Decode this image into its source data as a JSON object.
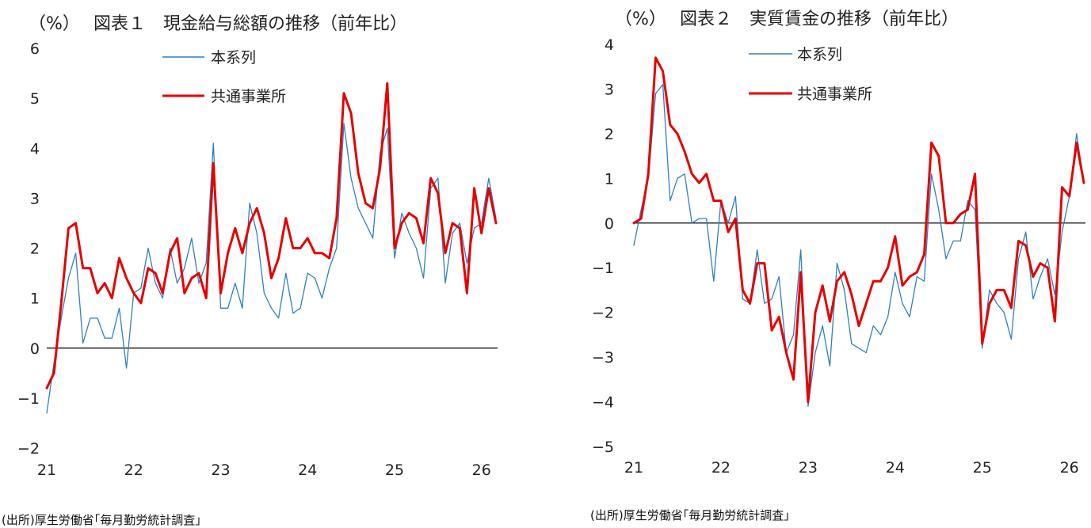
{
  "chart_data": [
    {
      "type": "line",
      "unit_label": "（%）",
      "title": "図表１　現金給与総額の推移（前年比）",
      "xlabel": "",
      "ylabel": "",
      "ylim": [
        -2,
        6
      ],
      "y_ticks": [
        -2,
        -1,
        0,
        1,
        2,
        3,
        4,
        5,
        6
      ],
      "y_tick_labels": [
        "−2",
        "−1",
        "0",
        "1",
        "2",
        "3",
        "4",
        "5",
        "6"
      ],
      "x_ticks": [
        "21",
        "22",
        "23",
        "24",
        "25",
        "26"
      ],
      "x_range_months": [
        1,
        63
      ],
      "legend_position": "top-center",
      "series": [
        {
          "name": "本系列",
          "color": "#2f7fc1",
          "values": [
            -1.3,
            -0.3,
            0.6,
            1.4,
            1.9,
            0.1,
            0.6,
            0.6,
            0.2,
            0.2,
            0.8,
            -0.4,
            1.1,
            1.2,
            2.0,
            1.3,
            1.0,
            2.0,
            1.3,
            1.6,
            2.2,
            1.3,
            1.7,
            4.1,
            0.8,
            0.8,
            1.3,
            0.8,
            2.9,
            2.3,
            1.1,
            0.8,
            0.6,
            1.5,
            0.7,
            0.8,
            1.5,
            1.4,
            1.0,
            1.6,
            2.0,
            4.5,
            3.4,
            2.8,
            2.5,
            2.2,
            3.9,
            4.4,
            1.8,
            2.7,
            2.3,
            2.0,
            1.4,
            3.2,
            3.4,
            1.3,
            2.3,
            2.5,
            1.7,
            2.4,
            2.5,
            3.4,
            2.6
          ]
        },
        {
          "name": "共通事業所",
          "color": "#e60000",
          "values": [
            -0.8,
            -0.5,
            0.9,
            2.4,
            2.5,
            1.6,
            1.6,
            1.1,
            1.3,
            1.0,
            1.8,
            1.4,
            1.1,
            0.9,
            1.6,
            1.5,
            1.1,
            1.9,
            2.2,
            1.1,
            1.4,
            1.5,
            1.0,
            3.7,
            1.1,
            1.9,
            2.4,
            1.9,
            2.5,
            2.8,
            2.3,
            1.4,
            1.8,
            2.6,
            2.0,
            2.0,
            2.2,
            1.9,
            1.9,
            1.8,
            2.6,
            5.1,
            4.7,
            3.5,
            2.9,
            2.8,
            3.6,
            5.3,
            2.0,
            2.5,
            2.7,
            2.6,
            2.1,
            3.4,
            3.1,
            1.9,
            2.5,
            2.4,
            1.1,
            3.2,
            2.3,
            3.2,
            2.5
          ]
        }
      ],
      "source": "(出所)厚生労働省｢毎月勤労統計調査｣"
    },
    {
      "type": "line",
      "unit_label": "（%）",
      "title": "図表２　実質賃金の推移（前年比）",
      "xlabel": "",
      "ylabel": "",
      "ylim": [
        -5,
        4
      ],
      "y_ticks": [
        -5,
        -4,
        -3,
        -2,
        -1,
        0,
        1,
        2,
        3,
        4
      ],
      "y_tick_labels": [
        "−5",
        "−4",
        "−3",
        "−2",
        "−1",
        "0",
        "1",
        "2",
        "3",
        "4"
      ],
      "x_ticks": [
        "21",
        "22",
        "23",
        "24",
        "25",
        "26"
      ],
      "x_range_months": [
        1,
        63
      ],
      "legend_position": "top-center",
      "series": [
        {
          "name": "本系列",
          "color": "#2f7fc1",
          "values": [
            -0.5,
            0.3,
            1.0,
            2.9,
            3.1,
            0.5,
            1.0,
            1.1,
            0.0,
            0.1,
            0.1,
            -1.3,
            0.5,
            0.0,
            0.6,
            -1.7,
            -1.8,
            -0.6,
            -1.8,
            -1.7,
            -1.2,
            -2.9,
            -2.5,
            -0.6,
            -4.1,
            -2.9,
            -2.3,
            -3.2,
            -0.9,
            -1.5,
            -2.7,
            -2.8,
            -2.9,
            -2.3,
            -2.5,
            -2.1,
            -1.1,
            -1.8,
            -2.1,
            -1.2,
            -1.3,
            1.1,
            0.3,
            -0.8,
            -0.4,
            -0.4,
            0.5,
            0.3,
            -2.8,
            -1.5,
            -1.8,
            -2.0,
            -2.6,
            -0.8,
            -0.2,
            -1.7,
            -1.2,
            -0.8,
            -1.6,
            -0.2,
            0.6,
            2.0,
            0.9
          ]
        },
        {
          "name": "共通事業所",
          "color": "#e60000",
          "values": [
            0.0,
            0.1,
            1.1,
            3.7,
            3.4,
            2.2,
            2.0,
            1.6,
            1.1,
            0.9,
            1.1,
            0.5,
            0.5,
            -0.2,
            0.1,
            -1.5,
            -1.8,
            -0.9,
            -0.9,
            -2.4,
            -2.1,
            -2.9,
            -3.5,
            -1.1,
            -4.0,
            -2.0,
            -1.4,
            -2.2,
            -1.3,
            -1.1,
            -1.6,
            -2.3,
            -1.8,
            -1.3,
            -1.3,
            -1.0,
            -0.3,
            -1.4,
            -1.2,
            -1.1,
            -0.7,
            1.8,
            1.5,
            0.0,
            0.0,
            0.2,
            0.3,
            1.1,
            -2.7,
            -1.8,
            -1.5,
            -1.5,
            -1.9,
            -0.4,
            -0.5,
            -1.2,
            -0.9,
            -1.0,
            -2.2,
            0.8,
            0.6,
            1.8,
            0.9
          ]
        }
      ],
      "source": "(出所)厚生労働省｢毎月勤労統計調査｣"
    }
  ]
}
